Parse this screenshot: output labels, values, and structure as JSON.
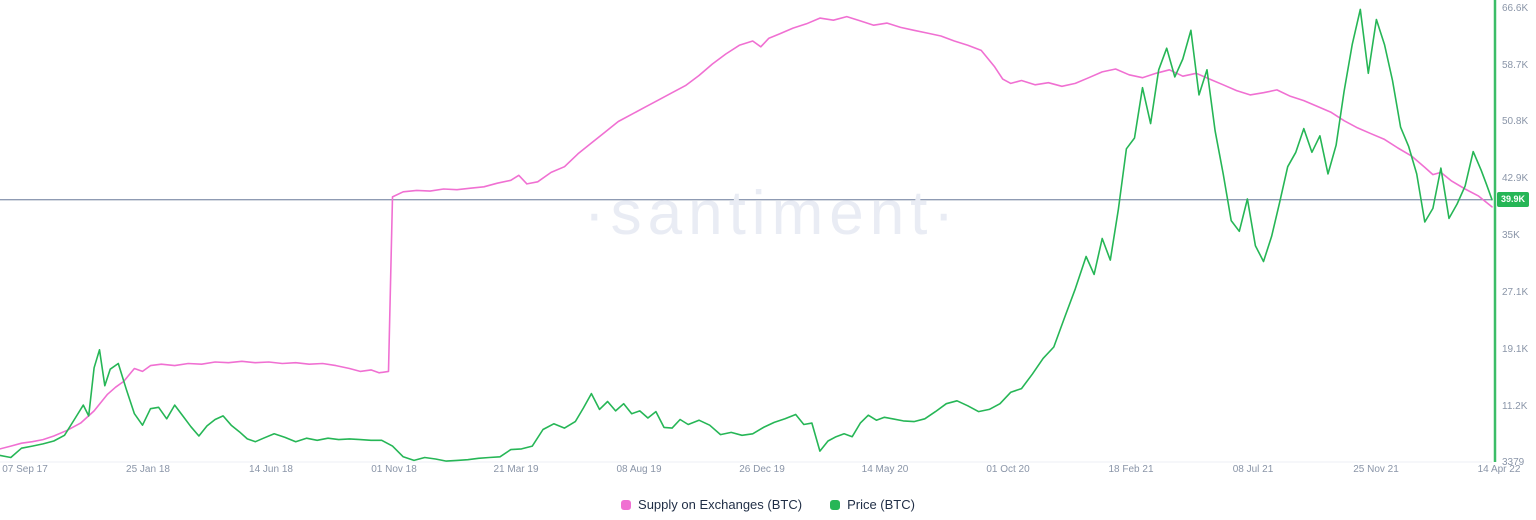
{
  "watermark": "·santiment·",
  "chart_data": {
    "type": "line",
    "title": "",
    "grid": false,
    "legend_position": "bottom-center",
    "x_axis": {
      "labels": [
        "07 Sep 17",
        "25 Jan 18",
        "14 Jun 18",
        "01 Nov 18",
        "21 Mar 19",
        "08 Aug 19",
        "26 Dec 19",
        "14 May 20",
        "01 Oct 20",
        "18 Feb 21",
        "08 Jul 21",
        "25 Nov 21",
        "14 Apr 22"
      ],
      "range_months": 55.5
    },
    "y_axis": {
      "min": 3.379,
      "max": 66.6,
      "unit": "K",
      "axis_line_color": "#26b656",
      "labels": [
        {
          "text": "66.6K",
          "value": 66.6
        },
        {
          "text": "58.7K",
          "value": 58.7
        },
        {
          "text": "50.8K",
          "value": 50.8
        },
        {
          "text": "42.9K",
          "value": 42.9
        },
        {
          "text": "35K",
          "value": 35.0
        },
        {
          "text": "27.1K",
          "value": 27.1
        },
        {
          "text": "19.1K",
          "value": 19.1
        },
        {
          "text": "11.2K",
          "value": 11.2
        },
        {
          "text": "3379",
          "value": 3.379
        }
      ]
    },
    "current_value": {
      "text": "39.9K",
      "value": 39.9
    },
    "reference_line": {
      "value": 39.9,
      "color": "#8f9bb3"
    },
    "series": [
      {
        "name": "Supply on Exchanges (BTC)",
        "color": "#f070d2",
        "points": [
          [
            0,
            5.2
          ],
          [
            0.4,
            5.6
          ],
          [
            0.8,
            6.0
          ],
          [
            1.2,
            6.2
          ],
          [
            1.6,
            6.5
          ],
          [
            2,
            7.0
          ],
          [
            2.5,
            7.8
          ],
          [
            3,
            8.8
          ],
          [
            3.5,
            10.5
          ],
          [
            4,
            12.8
          ],
          [
            4.3,
            13.8
          ],
          [
            4.6,
            14.6
          ],
          [
            5,
            16.4
          ],
          [
            5.3,
            16.0
          ],
          [
            5.6,
            16.8
          ],
          [
            6,
            17.0
          ],
          [
            6.5,
            16.8
          ],
          [
            7,
            17.1
          ],
          [
            7.5,
            17.0
          ],
          [
            8,
            17.3
          ],
          [
            8.5,
            17.2
          ],
          [
            9,
            17.4
          ],
          [
            9.5,
            17.2
          ],
          [
            10,
            17.3
          ],
          [
            10.5,
            17.1
          ],
          [
            11,
            17.2
          ],
          [
            11.5,
            17.0
          ],
          [
            12,
            17.1
          ],
          [
            12.5,
            16.8
          ],
          [
            13,
            16.4
          ],
          [
            13.4,
            16.0
          ],
          [
            13.8,
            16.2
          ],
          [
            14.1,
            15.8
          ],
          [
            14.45,
            16.0
          ],
          [
            14.6,
            40.3
          ],
          [
            15,
            41.0
          ],
          [
            15.5,
            41.2
          ],
          [
            16,
            41.1
          ],
          [
            16.5,
            41.4
          ],
          [
            17,
            41.3
          ],
          [
            17.5,
            41.5
          ],
          [
            18,
            41.7
          ],
          [
            18.5,
            42.2
          ],
          [
            19,
            42.6
          ],
          [
            19.3,
            43.3
          ],
          [
            19.6,
            42.1
          ],
          [
            20,
            42.4
          ],
          [
            20.5,
            43.7
          ],
          [
            21,
            44.5
          ],
          [
            21.5,
            46.3
          ],
          [
            22,
            47.8
          ],
          [
            22.5,
            49.3
          ],
          [
            23,
            50.8
          ],
          [
            23.5,
            51.8
          ],
          [
            24,
            52.8
          ],
          [
            24.5,
            53.8
          ],
          [
            25,
            54.8
          ],
          [
            25.5,
            55.8
          ],
          [
            26,
            57.2
          ],
          [
            26.5,
            58.8
          ],
          [
            27,
            60.2
          ],
          [
            27.5,
            61.4
          ],
          [
            28,
            62.0
          ],
          [
            28.3,
            61.2
          ],
          [
            28.6,
            62.4
          ],
          [
            29,
            63.0
          ],
          [
            29.5,
            63.8
          ],
          [
            30,
            64.4
          ],
          [
            30.5,
            65.2
          ],
          [
            31,
            64.9
          ],
          [
            31.5,
            65.4
          ],
          [
            32,
            64.8
          ],
          [
            32.5,
            64.2
          ],
          [
            33,
            64.5
          ],
          [
            33.5,
            63.9
          ],
          [
            34,
            63.5
          ],
          [
            34.5,
            63.1
          ],
          [
            35,
            62.7
          ],
          [
            35.5,
            62.0
          ],
          [
            36,
            61.4
          ],
          [
            36.5,
            60.7
          ],
          [
            37,
            58.4
          ],
          [
            37.3,
            56.7
          ],
          [
            37.6,
            56.1
          ],
          [
            38,
            56.5
          ],
          [
            38.5,
            55.9
          ],
          [
            39,
            56.2
          ],
          [
            39.5,
            55.7
          ],
          [
            40,
            56.1
          ],
          [
            40.5,
            56.9
          ],
          [
            41,
            57.7
          ],
          [
            41.5,
            58.1
          ],
          [
            42,
            57.3
          ],
          [
            42.5,
            56.9
          ],
          [
            43,
            57.5
          ],
          [
            43.5,
            58.0
          ],
          [
            44,
            57.1
          ],
          [
            44.5,
            57.5
          ],
          [
            45,
            56.7
          ],
          [
            45.5,
            55.9
          ],
          [
            46,
            55.1
          ],
          [
            46.5,
            54.5
          ],
          [
            47,
            54.8
          ],
          [
            47.5,
            55.2
          ],
          [
            48,
            54.3
          ],
          [
            48.5,
            53.7
          ],
          [
            49,
            52.9
          ],
          [
            49.5,
            52.1
          ],
          [
            50,
            50.9
          ],
          [
            50.5,
            49.9
          ],
          [
            51,
            49.1
          ],
          [
            51.5,
            48.3
          ],
          [
            52,
            47.1
          ],
          [
            52.5,
            46.0
          ],
          [
            53,
            44.4
          ],
          [
            53.3,
            43.4
          ],
          [
            53.6,
            43.7
          ],
          [
            54,
            42.5
          ],
          [
            54.5,
            41.4
          ],
          [
            55,
            40.4
          ],
          [
            55.5,
            38.9
          ]
        ]
      },
      {
        "name": "Price (BTC)",
        "color": "#26b656",
        "points": [
          [
            0,
            4.3
          ],
          [
            0.4,
            4.0
          ],
          [
            0.8,
            5.3
          ],
          [
            1.2,
            5.6
          ],
          [
            1.6,
            5.9
          ],
          [
            2,
            6.3
          ],
          [
            2.4,
            7.1
          ],
          [
            2.8,
            9.5
          ],
          [
            3.1,
            11.3
          ],
          [
            3.3,
            9.8
          ],
          [
            3.5,
            16.5
          ],
          [
            3.7,
            19.0
          ],
          [
            3.9,
            14.0
          ],
          [
            4.1,
            16.3
          ],
          [
            4.4,
            17.1
          ],
          [
            4.7,
            13.5
          ],
          [
            5,
            10.1
          ],
          [
            5.3,
            8.5
          ],
          [
            5.6,
            10.8
          ],
          [
            5.9,
            11.0
          ],
          [
            6.2,
            9.4
          ],
          [
            6.5,
            11.3
          ],
          [
            6.8,
            9.8
          ],
          [
            7.1,
            8.3
          ],
          [
            7.4,
            7.0
          ],
          [
            7.7,
            8.4
          ],
          [
            8,
            9.3
          ],
          [
            8.3,
            9.8
          ],
          [
            8.6,
            8.5
          ],
          [
            8.9,
            7.6
          ],
          [
            9.2,
            6.6
          ],
          [
            9.5,
            6.2
          ],
          [
            9.8,
            6.7
          ],
          [
            10.2,
            7.3
          ],
          [
            10.6,
            6.8
          ],
          [
            11,
            6.2
          ],
          [
            11.4,
            6.7
          ],
          [
            11.8,
            6.4
          ],
          [
            12.2,
            6.7
          ],
          [
            12.6,
            6.5
          ],
          [
            13,
            6.6
          ],
          [
            13.4,
            6.5
          ],
          [
            13.8,
            6.4
          ],
          [
            14.2,
            6.4
          ],
          [
            14.6,
            5.6
          ],
          [
            15,
            4.1
          ],
          [
            15.4,
            3.6
          ],
          [
            15.8,
            4.0
          ],
          [
            16.2,
            3.8
          ],
          [
            16.6,
            3.5
          ],
          [
            17,
            3.6
          ],
          [
            17.4,
            3.7
          ],
          [
            17.8,
            3.9
          ],
          [
            18.2,
            4.0
          ],
          [
            18.6,
            4.1
          ],
          [
            19,
            5.1
          ],
          [
            19.4,
            5.2
          ],
          [
            19.8,
            5.6
          ],
          [
            20.2,
            7.9
          ],
          [
            20.6,
            8.7
          ],
          [
            21,
            8.1
          ],
          [
            21.4,
            9.0
          ],
          [
            21.7,
            10.9
          ],
          [
            22,
            12.9
          ],
          [
            22.3,
            10.7
          ],
          [
            22.6,
            11.8
          ],
          [
            22.9,
            10.5
          ],
          [
            23.2,
            11.5
          ],
          [
            23.5,
            10.1
          ],
          [
            23.8,
            10.5
          ],
          [
            24.1,
            9.5
          ],
          [
            24.4,
            10.4
          ],
          [
            24.7,
            8.2
          ],
          [
            25,
            8.1
          ],
          [
            25.3,
            9.3
          ],
          [
            25.6,
            8.6
          ],
          [
            26,
            9.2
          ],
          [
            26.4,
            8.5
          ],
          [
            26.8,
            7.2
          ],
          [
            27.2,
            7.5
          ],
          [
            27.6,
            7.1
          ],
          [
            28,
            7.3
          ],
          [
            28.4,
            8.2
          ],
          [
            28.8,
            8.9
          ],
          [
            29.2,
            9.4
          ],
          [
            29.6,
            10.0
          ],
          [
            29.9,
            8.6
          ],
          [
            30.2,
            8.8
          ],
          [
            30.5,
            4.9
          ],
          [
            30.8,
            6.3
          ],
          [
            31.1,
            6.9
          ],
          [
            31.4,
            7.3
          ],
          [
            31.7,
            6.9
          ],
          [
            32,
            8.8
          ],
          [
            32.3,
            9.9
          ],
          [
            32.6,
            9.2
          ],
          [
            32.9,
            9.6
          ],
          [
            33.2,
            9.4
          ],
          [
            33.6,
            9.1
          ],
          [
            34,
            9.0
          ],
          [
            34.4,
            9.4
          ],
          [
            34.8,
            10.4
          ],
          [
            35.2,
            11.5
          ],
          [
            35.6,
            11.9
          ],
          [
            36,
            11.2
          ],
          [
            36.4,
            10.4
          ],
          [
            36.8,
            10.7
          ],
          [
            37.2,
            11.5
          ],
          [
            37.6,
            13.1
          ],
          [
            38,
            13.6
          ],
          [
            38.4,
            15.6
          ],
          [
            38.8,
            17.8
          ],
          [
            39.2,
            19.4
          ],
          [
            39.6,
            23.5
          ],
          [
            40,
            27.5
          ],
          [
            40.4,
            32.0
          ],
          [
            40.7,
            29.5
          ],
          [
            41,
            34.5
          ],
          [
            41.3,
            31.5
          ],
          [
            41.6,
            38.5
          ],
          [
            41.9,
            47.0
          ],
          [
            42.2,
            48.5
          ],
          [
            42.5,
            55.5
          ],
          [
            42.8,
            50.5
          ],
          [
            43.1,
            58.0
          ],
          [
            43.4,
            61.0
          ],
          [
            43.7,
            57.0
          ],
          [
            44,
            59.5
          ],
          [
            44.3,
            63.5
          ],
          [
            44.6,
            54.5
          ],
          [
            44.9,
            58.0
          ],
          [
            45.2,
            49.5
          ],
          [
            45.5,
            43.5
          ],
          [
            45.8,
            37.0
          ],
          [
            46.1,
            35.5
          ],
          [
            46.4,
            40.0
          ],
          [
            46.7,
            33.5
          ],
          [
            47,
            31.3
          ],
          [
            47.3,
            34.8
          ],
          [
            47.6,
            39.5
          ],
          [
            47.9,
            44.5
          ],
          [
            48.2,
            46.5
          ],
          [
            48.5,
            49.8
          ],
          [
            48.8,
            46.5
          ],
          [
            49.1,
            48.8
          ],
          [
            49.4,
            43.5
          ],
          [
            49.7,
            47.5
          ],
          [
            50,
            55.0
          ],
          [
            50.3,
            61.5
          ],
          [
            50.6,
            66.4
          ],
          [
            50.9,
            57.5
          ],
          [
            51.2,
            65.0
          ],
          [
            51.5,
            61.5
          ],
          [
            51.8,
            56.5
          ],
          [
            52.1,
            50.0
          ],
          [
            52.4,
            47.3
          ],
          [
            52.7,
            43.5
          ],
          [
            53,
            36.8
          ],
          [
            53.3,
            38.7
          ],
          [
            53.6,
            44.3
          ],
          [
            53.9,
            37.3
          ],
          [
            54.2,
            39.3
          ],
          [
            54.5,
            41.8
          ],
          [
            54.8,
            46.6
          ],
          [
            55.1,
            44.0
          ],
          [
            55.3,
            42.0
          ],
          [
            55.5,
            39.9
          ]
        ]
      }
    ]
  },
  "legend": {
    "items": [
      {
        "label": "Supply on Exchanges (BTC)"
      },
      {
        "label": "Price (BTC)"
      }
    ]
  }
}
